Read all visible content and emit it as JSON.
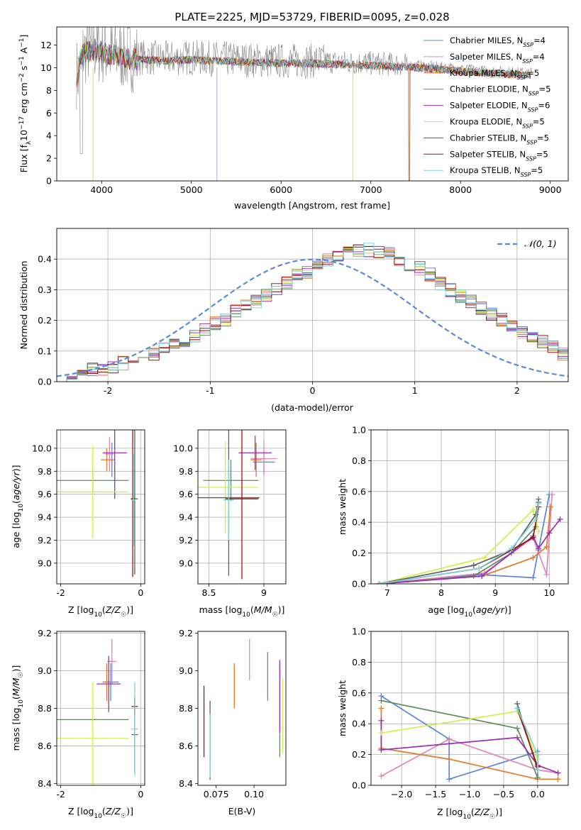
{
  "figure": {
    "title": "PLATE=2225, MJD=53729, FIBERID=0095, z=0.028"
  },
  "colors": {
    "Chabrier MILES": "#5b85d9",
    "Salpeter MILES": "#e085b5",
    "Kroupa MILES": "#e07b2a",
    "Chabrier ELODIE": "#5b8a5b",
    "Salpeter ELODIE": "#9a2fb5",
    "Kroupa ELODIE": "#d4ec4a",
    "Chabrier STELIB": "#5c5c5c",
    "Salpeter STELIB": "#a01010",
    "Kroupa STELIB": "#7ed6dc",
    "gaussian": "#5b8ad9"
  },
  "chart_data": [
    {
      "id": "spectrum",
      "type": "line",
      "xlabel": "wavelength [Angstrom, rest frame]",
      "ylabel": "Flux [f_λ 10^-17 erg cm^-2 s^-1 A^-1]",
      "xlim": [
        3500,
        9200
      ],
      "ylim": [
        0,
        13.6
      ],
      "xticks": [
        4000,
        5000,
        6000,
        7000,
        8000,
        9000
      ],
      "yticks": [
        0,
        2,
        4,
        6,
        8,
        10,
        12
      ],
      "grid": false,
      "legend_position": "top-right",
      "data_envelope": {
        "x": [
          3750,
          3800,
          3900,
          4000,
          4100,
          4200,
          4300,
          4500,
          4700,
          5000,
          5300,
          5600,
          6000,
          6300,
          6600,
          7000,
          7300,
          7500,
          7700,
          8000,
          8300,
          8600,
          8800
        ],
        "y": [
          10.8,
          11.4,
          11.8,
          11.6,
          11.3,
          11.2,
          11.0,
          10.9,
          10.8,
          10.9,
          10.8,
          10.7,
          10.6,
          10.6,
          10.5,
          10.4,
          10.3,
          10.2,
          10.1,
          9.9,
          9.7,
          9.6,
          9.5
        ]
      },
      "series": [
        {
          "name": "Chabrier MILES, N_SSP=4",
          "legend": "Chabrier MILES, N",
          "sub": "SSP",
          "nssp": "=4"
        },
        {
          "name": "Salpeter MILES, N_SSP=4",
          "legend": "Salpeter MILES, N",
          "sub": "SSP",
          "nssp": "=4"
        },
        {
          "name": "Kroupa MILES, N_SSP=5",
          "legend": "Kroupa MILES, N",
          "sub": "SSP",
          "nssp": "=5"
        },
        {
          "name": "Chabrier ELODIE, N_SSP=5",
          "legend": "Chabrier ELODIE, N",
          "sub": "SSP",
          "nssp": "=5"
        },
        {
          "name": "Salpeter ELODIE, N_SSP=6",
          "legend": "Salpeter ELODIE, N",
          "sub": "SSP",
          "nssp": "=6"
        },
        {
          "name": "Kroupa ELODIE, N_SSP=5",
          "legend": "Kroupa ELODIE, N",
          "sub": "SSP",
          "nssp": "=5"
        },
        {
          "name": "Chabrier STELIB, N_SSP=5",
          "legend": "Chabrier STELIB, N",
          "sub": "SSP",
          "nssp": "=5"
        },
        {
          "name": "Salpeter STELIB, N_SSP=5",
          "legend": "Salpeter STELIB, N",
          "sub": "SSP",
          "nssp": "=5"
        },
        {
          "name": "Kroupa STELIB, N_SSP=5",
          "legend": "Kroupa STELIB, N",
          "sub": "SSP",
          "nssp": "=5"
        }
      ]
    },
    {
      "id": "residuals",
      "type": "line",
      "xlabel": "(data-model)/error",
      "ylabel": "Normed distribution",
      "xlim": [
        -2.5,
        2.5
      ],
      "ylim": [
        0,
        0.5
      ],
      "xticks": [
        -2,
        -1,
        0,
        1,
        2
      ],
      "yticks": [
        0.0,
        0.1,
        0.2,
        0.3,
        0.4
      ],
      "grid": true,
      "legend_position": "top-right",
      "legend": "𝒩(0, 1)",
      "gaussian": {
        "mean": 0,
        "sigma": 1
      },
      "bin_width": 0.1,
      "bins_start": -2.5,
      "histogram_mean": [
        0.02,
        0.02,
        0.03,
        0.04,
        0.04,
        0.05,
        0.06,
        0.07,
        0.08,
        0.09,
        0.11,
        0.12,
        0.13,
        0.15,
        0.17,
        0.19,
        0.2,
        0.23,
        0.25,
        0.26,
        0.28,
        0.3,
        0.32,
        0.35,
        0.36,
        0.38,
        0.4,
        0.41,
        0.42,
        0.43,
        0.43,
        0.42,
        0.42,
        0.4,
        0.38,
        0.37,
        0.35,
        0.32,
        0.3,
        0.28,
        0.26,
        0.24,
        0.22,
        0.2,
        0.18,
        0.16,
        0.14,
        0.13,
        0.11,
        0.09,
        0.08,
        0.07,
        0.06,
        0.05,
        0.04,
        0.03,
        0.03,
        0.02,
        0.02,
        0.02
      ]
    },
    {
      "id": "age-vs-Z",
      "type": "scatter",
      "xlabel": "Z [log10(Z/Z☉)]",
      "ylabel": "age [log10(age/yr)]",
      "xlim": [
        -2.1,
        0.1
      ],
      "ylim": [
        8.82,
        10.16
      ],
      "xticks": [
        -2,
        0
      ],
      "yticks": [
        9.0,
        9.2,
        9.4,
        9.6,
        9.8,
        10.0
      ],
      "grid": true,
      "points": [
        {
          "series": "Chabrier MILES",
          "x": -0.72,
          "y": 9.9,
          "xerr": 0.08,
          "yerr": 0.15
        },
        {
          "series": "Salpeter MILES",
          "x": -0.78,
          "y": 9.95,
          "xerr": 0.1,
          "yerr": 0.15
        },
        {
          "series": "Kroupa MILES",
          "x": -0.85,
          "y": 9.9,
          "xerr": 0.15,
          "yerr": 0.1
        },
        {
          "series": "Chabrier ELODIE",
          "x": -1.2,
          "y": 9.72,
          "xerr": 0.9,
          "yerr": 0.1
        },
        {
          "series": "Salpeter ELODIE",
          "x": -0.65,
          "y": 9.96,
          "xerr": 0.3,
          "yerr": 0.4
        },
        {
          "series": "Kroupa ELODIE",
          "x": -1.2,
          "y": 9.62,
          "xerr": 0.9,
          "yerr": 0.4
        },
        {
          "series": "Chabrier STELIB",
          "x": -0.15,
          "y": 9.56,
          "xerr": 0.08,
          "yerr": 0.66
        },
        {
          "series": "Salpeter STELIB",
          "x": -0.2,
          "y": 9.56,
          "xerr": 0.05,
          "yerr": 0.68
        },
        {
          "series": "Kroupa STELIB",
          "x": -0.18,
          "y": 9.55,
          "xerr": 0.05,
          "yerr": 0.4
        }
      ]
    },
    {
      "id": "age-vs-mass",
      "type": "scatter",
      "xlabel": "mass [log10(M/M☉)]",
      "xlim": [
        8.4,
        9.2
      ],
      "ylim": [
        8.82,
        10.16
      ],
      "xticks": [
        8.5,
        9.0
      ],
      "yticks": [
        9.0,
        9.2,
        9.4,
        9.6,
        9.8,
        10.0
      ],
      "grid": true,
      "points": [
        {
          "series": "Chabrier MILES",
          "x": 9.0,
          "y": 9.88,
          "xerr": 0.1,
          "yerr": 0.1
        },
        {
          "series": "Salpeter MILES",
          "x": 9.0,
          "y": 9.91,
          "xerr": 0.12,
          "yerr": 0.15
        },
        {
          "series": "Kroupa MILES",
          "x": 8.93,
          "y": 9.9,
          "xerr": 0.05,
          "yerr": 0.15
        },
        {
          "series": "Chabrier ELODIE",
          "x": 8.7,
          "y": 9.72,
          "xerr": 0.25,
          "yerr": 0.18
        },
        {
          "series": "Salpeter ELODIE",
          "x": 8.92,
          "y": 9.96,
          "xerr": 0.15,
          "yerr": 0.15
        },
        {
          "series": "Kroupa ELODIE",
          "x": 8.65,
          "y": 9.66,
          "xerr": 0.3,
          "yerr": 0.4
        },
        {
          "series": "Chabrier STELIB",
          "x": 8.68,
          "y": 9.57,
          "xerr": 0.28,
          "yerr": 0.68
        },
        {
          "series": "Salpeter STELIB",
          "x": 8.8,
          "y": 9.56,
          "xerr": 0.15,
          "yerr": 0.7
        },
        {
          "series": "Kroupa STELIB",
          "x": 8.68,
          "y": 9.55,
          "xerr": 0.05,
          "yerr": 0.35
        }
      ]
    },
    {
      "id": "mass-weight-vs-age",
      "type": "line",
      "xlabel": "age  [log10(age/yr)]",
      "ylabel": "mass weight",
      "xlim": [
        6.7,
        10.35
      ],
      "ylim": [
        0,
        1.0
      ],
      "xticks": [
        7,
        8,
        9,
        10
      ],
      "yticks": [
        0.0,
        0.2,
        0.4,
        0.6,
        0.8,
        1.0
      ],
      "grid": true,
      "series": [
        {
          "name": "Chabrier MILES",
          "x": [
            6.85,
            8.7,
            9.7,
            9.8,
            10.0
          ],
          "y": [
            0.0,
            0.06,
            0.04,
            0.22,
            0.58
          ]
        },
        {
          "name": "Salpeter MILES",
          "x": [
            6.85,
            8.8,
            9.7,
            9.95,
            10.05
          ],
          "y": [
            0.0,
            0.07,
            0.3,
            0.06,
            0.58
          ]
        },
        {
          "name": "Kroupa MILES",
          "x": [
            6.85,
            8.75,
            9.7,
            9.95,
            10.02
          ],
          "y": [
            0.0,
            0.05,
            0.17,
            0.24,
            0.5
          ]
        },
        {
          "name": "Chabrier ELODIE",
          "x": [
            6.85,
            8.6,
            9.3,
            9.75,
            9.8
          ],
          "y": [
            0.0,
            0.05,
            0.2,
            0.37,
            0.55
          ]
        },
        {
          "name": "Salpeter ELODIE",
          "x": [
            6.85,
            8.75,
            9.7,
            9.8,
            10.0,
            10.2
          ],
          "y": [
            0.0,
            0.05,
            0.31,
            0.23,
            0.33,
            0.42
          ]
        },
        {
          "name": "Kroupa ELODIE",
          "x": [
            6.85,
            8.8,
            9.7,
            9.8
          ],
          "y": [
            0.0,
            0.17,
            0.48,
            0.34
          ]
        },
        {
          "name": "Chabrier STELIB",
          "x": [
            6.85,
            8.6,
            9.3,
            9.75,
            9.8
          ],
          "y": [
            0.0,
            0.12,
            0.22,
            0.45,
            0.53
          ]
        },
        {
          "name": "Salpeter STELIB",
          "x": [
            6.85,
            8.7,
            9.7,
            9.8
          ],
          "y": [
            0.0,
            0.1,
            0.3,
            0.5
          ]
        },
        {
          "name": "Kroupa STELIB",
          "x": [
            6.85,
            8.7,
            9.3,
            9.75,
            9.8
          ],
          "y": [
            0.0,
            0.1,
            0.23,
            0.42,
            0.52
          ]
        }
      ]
    },
    {
      "id": "mass-vs-Z",
      "type": "scatter",
      "xlabel": "Z [log10(Z/Z☉)]",
      "ylabel": "mass [log10(M/M☉)]",
      "xlim": [
        -2.1,
        0.1
      ],
      "ylim": [
        8.39,
        9.21
      ],
      "xticks": [
        -2,
        0
      ],
      "yticks": [
        8.4,
        8.6,
        8.8,
        9.0,
        9.2
      ],
      "grid": true,
      "points": [
        {
          "series": "Chabrier MILES",
          "x": -0.75,
          "y": 8.94,
          "xerr": 0.2,
          "yerr": 0.1
        },
        {
          "series": "Salpeter MILES",
          "x": -0.72,
          "y": 9.05,
          "xerr": 0.12,
          "yerr": 0.12
        },
        {
          "series": "Kroupa MILES",
          "x": -0.85,
          "y": 8.94,
          "xerr": 0.1,
          "yerr": 0.1
        },
        {
          "series": "Chabrier ELODIE",
          "x": -1.2,
          "y": 8.74,
          "xerr": 0.9,
          "yerr": 0.0
        },
        {
          "series": "Salpeter ELODIE",
          "x": -0.8,
          "y": 8.93,
          "xerr": 0.3,
          "yerr": 0.15
        },
        {
          "series": "Kroupa ELODIE",
          "x": -1.2,
          "y": 8.64,
          "xerr": 0.9,
          "yerr": 0.3
        },
        {
          "series": "Chabrier STELIB",
          "x": -0.15,
          "y": 8.66,
          "xerr": 0.08,
          "yerr": 0.2
        },
        {
          "series": "Salpeter STELIB",
          "x": -0.15,
          "y": 8.81,
          "xerr": 0.08,
          "yerr": 0.05
        },
        {
          "series": "Kroupa STELIB",
          "x": -0.15,
          "y": 8.69,
          "xerr": 0.08,
          "yerr": 0.25
        }
      ]
    },
    {
      "id": "mass-vs-EBV",
      "type": "scatter",
      "xlabel": "E(B-V)",
      "xlim": [
        0.063,
        0.121
      ],
      "ylim": [
        8.39,
        9.21
      ],
      "xticks": [
        0.075,
        0.1
      ],
      "yticks": [
        8.4,
        8.6,
        8.8,
        9.0,
        9.2
      ],
      "grid": false,
      "points": [
        {
          "series": "Chabrier MILES",
          "x": 0.109,
          "y": 8.97,
          "yerr": 0.13
        },
        {
          "series": "Salpeter MILES",
          "x": 0.097,
          "y": 9.06,
          "yerr": 0.11
        },
        {
          "series": "Kroupa MILES",
          "x": 0.087,
          "y": 8.92,
          "yerr": 0.12
        },
        {
          "series": "Chabrier ELODIE",
          "x": 0.117,
          "y": 8.8,
          "yerr": 0.26
        },
        {
          "series": "Salpeter ELODIE",
          "x": 0.117,
          "y": 8.86,
          "yerr": 0.19
        },
        {
          "series": "Kroupa ELODIE",
          "x": 0.119,
          "y": 8.76,
          "yerr": 0.2
        },
        {
          "series": "Chabrier STELIB",
          "x": 0.071,
          "y": 8.63,
          "yerr": 0.21
        },
        {
          "series": "Salpeter STELIB",
          "x": 0.067,
          "y": 8.73,
          "yerr": 0.19
        },
        {
          "series": "Kroupa STELIB",
          "x": 0.071,
          "y": 8.6,
          "yerr": 0.17
        }
      ]
    },
    {
      "id": "mass-weight-vs-Z",
      "type": "line",
      "xlabel": "Z [log10(Z/Z☉)]",
      "ylabel": "mass weight",
      "xlim": [
        -2.45,
        0.45
      ],
      "ylim": [
        0,
        1.0
      ],
      "xticks": [
        -2.0,
        -1.5,
        -1.0,
        -0.5,
        0.0
      ],
      "yticks": [
        0.0,
        0.2,
        0.4,
        0.6,
        0.8,
        1.0
      ],
      "grid": true,
      "series": [
        {
          "name": "Chabrier MILES",
          "x": [
            -2.3,
            -1.3,
            -1.3,
            0.0,
            0.0
          ],
          "y": [
            0.58,
            0.3,
            0.04,
            0.22,
            0.05
          ]
        },
        {
          "name": "Salpeter MILES",
          "x": [
            -2.3,
            -1.3,
            0.0,
            0.3
          ],
          "y": [
            0.06,
            0.3,
            0.1,
            0.08
          ]
        },
        {
          "name": "Kroupa MILES",
          "x": [
            -2.3,
            -2.3,
            -1.3,
            0.0,
            0.3
          ],
          "y": [
            0.5,
            0.24,
            0.17,
            0.04,
            0.04
          ]
        },
        {
          "name": "Chabrier ELODIE",
          "x": [
            -2.3,
            -0.3,
            0.0
          ],
          "y": [
            0.55,
            0.37,
            0.05
          ]
        },
        {
          "name": "Salpeter ELODIE",
          "x": [
            -2.3,
            -2.3,
            -0.3,
            0.0,
            0.3
          ],
          "y": [
            0.42,
            0.23,
            0.31,
            0.13,
            0.08
          ]
        },
        {
          "name": "Kroupa ELODIE",
          "x": [
            -2.3,
            -0.3,
            0.0
          ],
          "y": [
            0.34,
            0.48,
            0.17
          ]
        },
        {
          "name": "Chabrier STELIB",
          "x": [
            -0.3,
            0.0,
            0.0
          ],
          "y": [
            0.53,
            0.1,
            0.2
          ]
        },
        {
          "name": "Salpeter STELIB",
          "x": [
            -0.3,
            0.0
          ],
          "y": [
            0.5,
            0.12
          ]
        },
        {
          "name": "Kroupa STELIB",
          "x": [
            -0.3,
            0.0,
            0.0
          ],
          "y": [
            0.5,
            0.2,
            0.1
          ]
        }
      ]
    }
  ]
}
